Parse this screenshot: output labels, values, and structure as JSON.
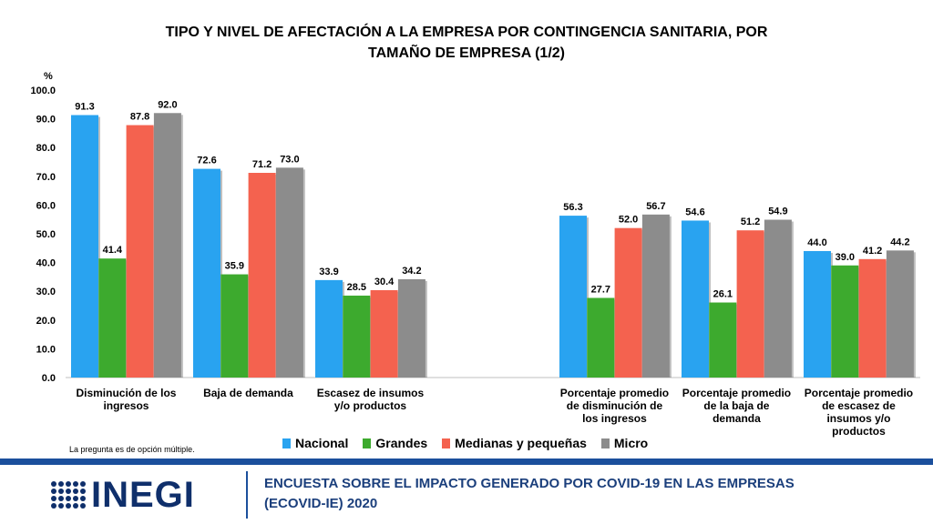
{
  "title_line1": "TIPO Y NIVEL DE AFECTACIÓN A LA EMPRESA POR CONTINGENCIA SANITARIA, POR",
  "title_line2": "TAMAÑO DE EMPRESA (1/2)",
  "note": "La pregunta es de opción múltiple.",
  "footer": {
    "logo_text": "INEGI",
    "survey_line1": "ENCUESTA SOBRE EL IMPACTO GENERADO POR COVID-19 EN LAS EMPRESAS",
    "survey_line2": "(ECOVID-IE) 2020"
  },
  "chart_data": {
    "type": "bar",
    "ylabel": "%",
    "ylim": [
      0,
      100
    ],
    "yticks": [
      "0.0",
      "10.0",
      "20.0",
      "30.0",
      "40.0",
      "50.0",
      "60.0",
      "70.0",
      "80.0",
      "90.0",
      "100.0"
    ],
    "grid": false,
    "legend_position": "bottom",
    "categories": [
      [
        "Disminución de los",
        "ingresos"
      ],
      [
        "Baja de demanda"
      ],
      [
        "Escasez de insumos",
        "y/o productos"
      ],
      [
        "Porcentaje promedio",
        "de disminución de",
        "los ingresos"
      ],
      [
        "Porcentaje promedio",
        "de la baja de",
        "demanda"
      ],
      [
        "Porcentaje promedio",
        "de escasez de",
        "insumos y/o",
        "productos"
      ]
    ],
    "series": [
      {
        "name": "Nacional",
        "color": "#29a3f0",
        "values": [
          91.3,
          72.6,
          33.9,
          56.3,
          54.6,
          44.0
        ],
        "labels": [
          "91.3",
          "72.6",
          "33.9",
          "56.3",
          "54.6",
          "44.0"
        ]
      },
      {
        "name": "Grandes",
        "color": "#3daa2e",
        "values": [
          41.4,
          35.9,
          28.5,
          27.7,
          26.1,
          39.0
        ],
        "labels": [
          "41.4",
          "35.9",
          "28.5",
          "27.7",
          "26.1",
          "39.0"
        ]
      },
      {
        "name": "Medianas y pequeñas",
        "color": "#f4624f",
        "values": [
          87.8,
          71.2,
          30.4,
          52.0,
          51.2,
          41.2
        ],
        "labels": [
          "87.8",
          "71.2",
          "30.4",
          "52.0",
          "51.2",
          "41.2"
        ]
      },
      {
        "name": "Micro",
        "color": "#8c8c8c",
        "values": [
          92.0,
          73.0,
          34.2,
          56.7,
          54.9,
          44.2
        ],
        "labels": [
          "92.0",
          "73.0",
          "34.2",
          "56.7",
          "54.9",
          "44.2"
        ]
      }
    ]
  }
}
